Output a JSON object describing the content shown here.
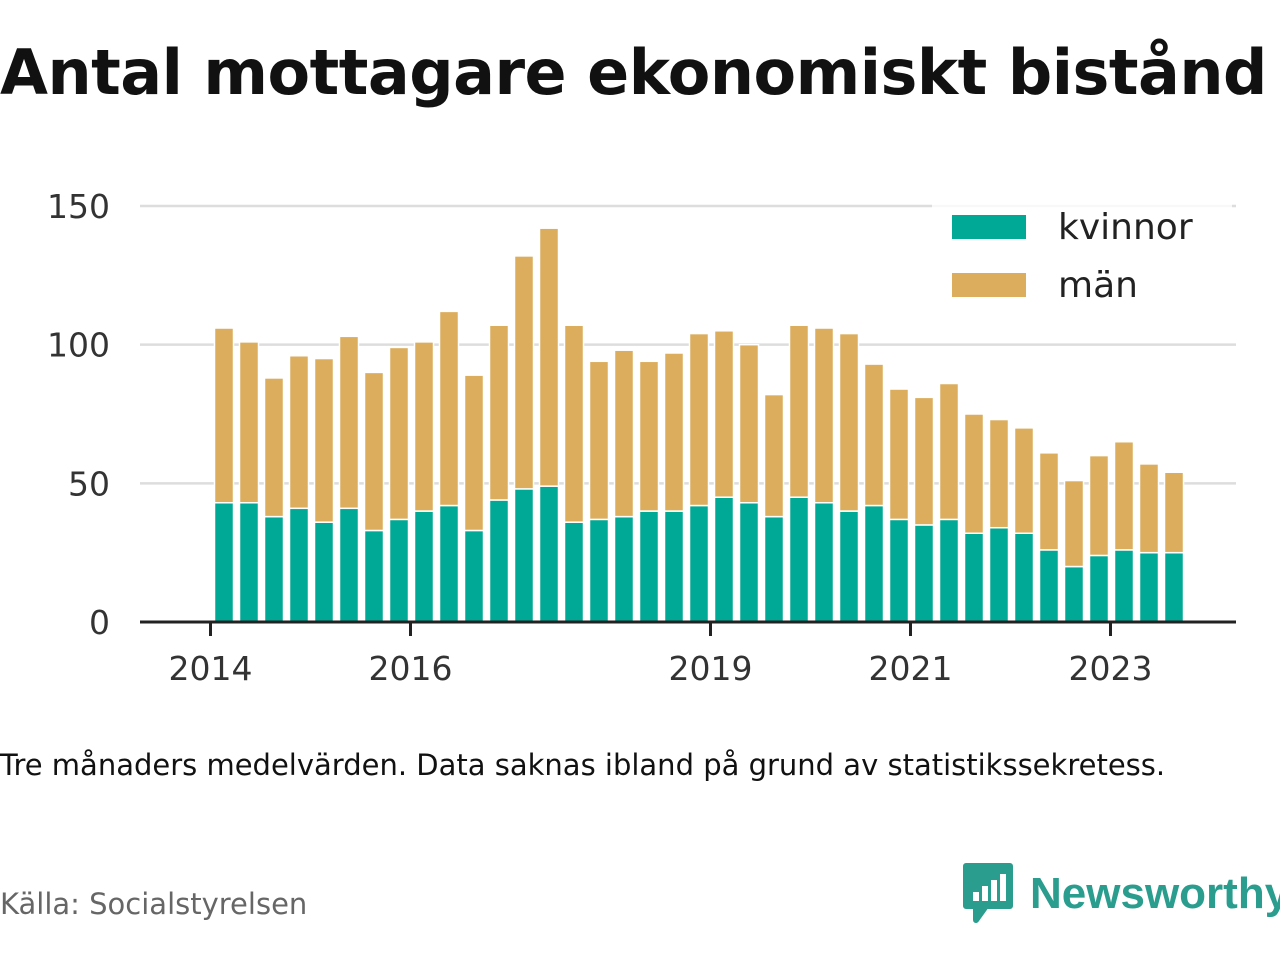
{
  "title": "Antal mottagare ekonomiskt bistånd",
  "note": "Tre månaders medelvärden. Data saknas ibland på grund av statistikssekretess.",
  "source": "Källa: Socialstyrelsen",
  "brand": {
    "name": "Newsworthy",
    "icon": "bar-chart-speech-bubble-icon",
    "color": "#2a9d8f"
  },
  "colors": {
    "kvinnor": "#00a896",
    "man": "#dbad5c",
    "grid": "#dddddd",
    "axis": "#222222"
  },
  "chart_data": {
    "type": "bar",
    "stacked": true,
    "x_unit": "period (three-month average)",
    "periods": [
      "2014-Q2",
      "2014-Q3",
      "2014-Q4",
      "2015-Q1",
      "2015-Q2",
      "2015-Q3",
      "2015-Q4",
      "2016-Q1",
      "2016-Q2",
      "2016-Q3",
      "2016-Q4",
      "2017-Q1",
      "2017-Q2",
      "2017-Q3",
      "2017-Q4",
      "2018-Q1",
      "2018-Q2",
      "2018-Q3",
      "2018-Q4",
      "2019-Q1",
      "2019-Q2",
      "2019-Q3",
      "2019-Q4",
      "2020-Q1",
      "2020-Q2",
      "2020-Q3",
      "2020-Q4",
      "2021-Q1",
      "2021-Q2",
      "2021-Q3",
      "2021-Q4",
      "2022-Q1",
      "2022-Q2",
      "2022-Q3",
      "2022-Q4",
      "2023-Q1",
      "2023-Q2",
      "2023-Q3",
      "2023-Q4"
    ],
    "series": [
      {
        "name": "kvinnor",
        "values": [
          43,
          43,
          38,
          41,
          36,
          41,
          33,
          37,
          40,
          42,
          33,
          44,
          48,
          49,
          36,
          37,
          38,
          40,
          40,
          42,
          45,
          43,
          38,
          45,
          43,
          40,
          42,
          37,
          35,
          37,
          32,
          34,
          32,
          26,
          20,
          24,
          26,
          25,
          25
        ]
      },
      {
        "name": "män",
        "values": [
          63,
          58,
          50,
          55,
          59,
          62,
          57,
          62,
          61,
          70,
          56,
          63,
          84,
          93,
          71,
          57,
          60,
          54,
          57,
          62,
          60,
          57,
          44,
          62,
          63,
          64,
          51,
          47,
          46,
          49,
          43,
          39,
          38,
          35,
          31,
          36,
          39,
          32,
          29
        ]
      }
    ],
    "ylim": [
      0,
      150
    ],
    "yticks": [
      0,
      50,
      100,
      150
    ],
    "xticks": [
      {
        "label": "2014",
        "at": "2014-Q1"
      },
      {
        "label": "2016",
        "at": "2016-Q1"
      },
      {
        "label": "2019",
        "at": "2019-Q1"
      },
      {
        "label": "2021",
        "at": "2021-Q1"
      },
      {
        "label": "2023",
        "at": "2023-Q1"
      }
    ],
    "legend": [
      "kvinnor",
      "män"
    ],
    "legend_position": "top-right",
    "grid": "horizontal"
  }
}
